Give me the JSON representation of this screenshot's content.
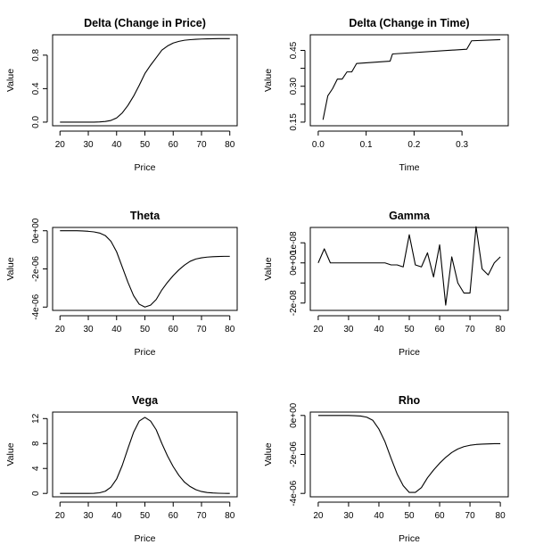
{
  "chart_data": [
    {
      "type": "line",
      "title": "Delta (Change in Price)",
      "xlabel": "Price",
      "ylabel": "Value",
      "xlim": [
        20,
        80
      ],
      "ylim": [
        0,
        1
      ],
      "xticks": [
        20,
        30,
        40,
        50,
        60,
        70,
        80
      ],
      "xtick_labels": [
        "20",
        "30",
        "40",
        "50",
        "60",
        "70",
        "80"
      ],
      "yticks": [
        0,
        0.4,
        0.8
      ],
      "ytick_labels": [
        "0.0",
        "0.4",
        "0.8"
      ],
      "x": [
        20,
        22,
        24,
        26,
        28,
        30,
        32,
        34,
        36,
        38,
        40,
        42,
        44,
        46,
        48,
        50,
        52,
        54,
        56,
        58,
        60,
        62,
        64,
        66,
        68,
        70,
        72,
        74,
        76,
        78,
        80
      ],
      "y": [
        0,
        0,
        0,
        0,
        0,
        0,
        0,
        0.002,
        0.008,
        0.02,
        0.05,
        0.11,
        0.2,
        0.31,
        0.44,
        0.58,
        0.68,
        0.77,
        0.86,
        0.91,
        0.945,
        0.965,
        0.978,
        0.985,
        0.99,
        0.993,
        0.995,
        0.996,
        0.997,
        0.997,
        0.997
      ]
    },
    {
      "type": "line",
      "title": "Delta (Change in Time)",
      "xlabel": "Time",
      "ylabel": "Value",
      "xlim": [
        0,
        0.38
      ],
      "ylim": [
        0.15,
        0.5
      ],
      "xticks": [
        0,
        0.1,
        0.2,
        0.3
      ],
      "xtick_labels": [
        "0.0",
        "0.1",
        "0.2",
        "0.3"
      ],
      "yticks": [
        0.15,
        0.3,
        0.45
      ],
      "ytick_labels": [
        "0.15",
        "0.30",
        "0.45"
      ],
      "y_minor_ticks": [
        0.225,
        0.375
      ],
      "x": [
        0.01,
        0.02,
        0.03,
        0.04,
        0.05,
        0.06,
        0.07,
        0.08,
        0.15,
        0.155,
        0.31,
        0.32,
        0.38
      ],
      "y": [
        0.16,
        0.26,
        0.29,
        0.33,
        0.33,
        0.36,
        0.36,
        0.395,
        0.405,
        0.435,
        0.455,
        0.49,
        0.495
      ]
    },
    {
      "type": "line",
      "title": "Theta",
      "xlabel": "Price",
      "ylabel": "Value",
      "xlim": [
        20,
        80
      ],
      "ylim": [
        -4e-06,
        0
      ],
      "xticks": [
        20,
        30,
        40,
        50,
        60,
        70,
        80
      ],
      "xtick_labels": [
        "20",
        "30",
        "40",
        "50",
        "60",
        "70",
        "80"
      ],
      "yticks": [
        -4e-06,
        -2e-06,
        0
      ],
      "ytick_labels": [
        "-4e-06",
        "-2e-06",
        "0e+00"
      ],
      "x": [
        20,
        22,
        24,
        26,
        28,
        30,
        32,
        34,
        36,
        38,
        40,
        42,
        44,
        46,
        48,
        50,
        52,
        54,
        56,
        58,
        60,
        62,
        64,
        66,
        68,
        70,
        72,
        74,
        76,
        78,
        80
      ],
      "y": [
        0,
        0,
        0,
        0,
        -1e-08,
        -3e-08,
        -6e-08,
        -1.2e-07,
        -2.5e-07,
        -5.5e-07,
        -1.1e-06,
        -1.9e-06,
        -2.7e-06,
        -3.4e-06,
        -3.85e-06,
        -4e-06,
        -3.9e-06,
        -3.6e-06,
        -3.1e-06,
        -2.7e-06,
        -2.35e-06,
        -2.05e-06,
        -1.8e-06,
        -1.6e-06,
        -1.48e-06,
        -1.42e-06,
        -1.38e-06,
        -1.36e-06,
        -1.35e-06,
        -1.34e-06,
        -1.34e-06
      ]
    },
    {
      "type": "line",
      "title": "Gamma",
      "xlabel": "Price",
      "ylabel": "Value",
      "xlim": [
        20,
        80
      ],
      "ylim": [
        -2.2e-08,
        1.6e-08
      ],
      "xticks": [
        20,
        30,
        40,
        50,
        60,
        70,
        80
      ],
      "xtick_labels": [
        "20",
        "30",
        "40",
        "50",
        "60",
        "70",
        "80"
      ],
      "yticks": [
        -2e-08,
        0,
        1e-08
      ],
      "ytick_labels": [
        "-2e-08",
        "0e+00",
        "1e-08"
      ],
      "y_minor_ticks": [
        -1e-08
      ],
      "x": [
        20,
        22,
        24,
        26,
        28,
        30,
        32,
        34,
        36,
        38,
        40,
        42,
        44,
        46,
        48,
        50,
        52,
        54,
        56,
        58,
        60,
        62,
        64,
        66,
        68,
        70,
        72,
        74,
        76,
        78,
        80
      ],
      "y": [
        0,
        7e-09,
        0,
        0,
        0,
        0,
        0,
        0,
        0,
        0,
        0,
        0,
        -1e-09,
        -1e-09,
        -2e-09,
        1.4e-08,
        -1e-09,
        -2e-09,
        5e-09,
        -7e-09,
        9e-09,
        -2.1e-08,
        3e-09,
        -1e-08,
        -1.5e-08,
        -1.5e-08,
        1.8e-08,
        -3e-09,
        -6e-09,
        0,
        3e-09
      ]
    },
    {
      "type": "line",
      "title": "Vega",
      "xlabel": "Price",
      "ylabel": "Value",
      "xlim": [
        20,
        80
      ],
      "ylim": [
        0,
        12.5
      ],
      "xticks": [
        20,
        30,
        40,
        50,
        60,
        70,
        80
      ],
      "xtick_labels": [
        "20",
        "30",
        "40",
        "50",
        "60",
        "70",
        "80"
      ],
      "yticks": [
        0,
        4,
        8,
        12
      ],
      "ytick_labels": [
        "0",
        "4",
        "8",
        "12"
      ],
      "x": [
        20,
        22,
        24,
        26,
        28,
        30,
        32,
        34,
        36,
        38,
        40,
        42,
        44,
        46,
        48,
        50,
        52,
        54,
        56,
        58,
        60,
        62,
        64,
        66,
        68,
        70,
        72,
        74,
        76,
        78,
        80
      ],
      "y": [
        0,
        0,
        0,
        0,
        0,
        0,
        0.02,
        0.1,
        0.35,
        1,
        2.3,
        4.5,
        7.2,
        9.8,
        11.6,
        12.2,
        11.6,
        10.2,
        8,
        6,
        4.3,
        2.9,
        1.8,
        1.1,
        0.6,
        0.3,
        0.15,
        0.07,
        0.03,
        0.01,
        0
      ]
    },
    {
      "type": "line",
      "title": "Rho",
      "xlabel": "Price",
      "ylabel": "Value",
      "xlim": [
        20,
        80
      ],
      "ylim": [
        -4e-06,
        0
      ],
      "xticks": [
        20,
        30,
        40,
        50,
        60,
        70,
        80
      ],
      "xtick_labels": [
        "20",
        "30",
        "40",
        "50",
        "60",
        "70",
        "80"
      ],
      "yticks": [
        -4e-06,
        -2e-06,
        0
      ],
      "ytick_labels": [
        "-4e-06",
        "-2e-06",
        "0e+00"
      ],
      "x": [
        20,
        22,
        24,
        26,
        28,
        30,
        32,
        34,
        36,
        38,
        40,
        42,
        44,
        46,
        48,
        50,
        52,
        54,
        56,
        58,
        60,
        62,
        64,
        66,
        68,
        70,
        72,
        74,
        76,
        78,
        80
      ],
      "y": [
        0,
        0,
        0,
        0,
        0,
        0,
        -1e-08,
        -3e-08,
        -9e-08,
        -2.5e-07,
        -7e-07,
        -1.35e-06,
        -2.2e-06,
        -3e-06,
        -3.6e-06,
        -3.95e-06,
        -3.95e-06,
        -3.7e-06,
        -3.2e-06,
        -2.8e-06,
        -2.45e-06,
        -2.15e-06,
        -1.9e-06,
        -1.72e-06,
        -1.6e-06,
        -1.53e-06,
        -1.49e-06,
        -1.47e-06,
        -1.46e-06,
        -1.45e-06,
        -1.45e-06
      ]
    }
  ]
}
